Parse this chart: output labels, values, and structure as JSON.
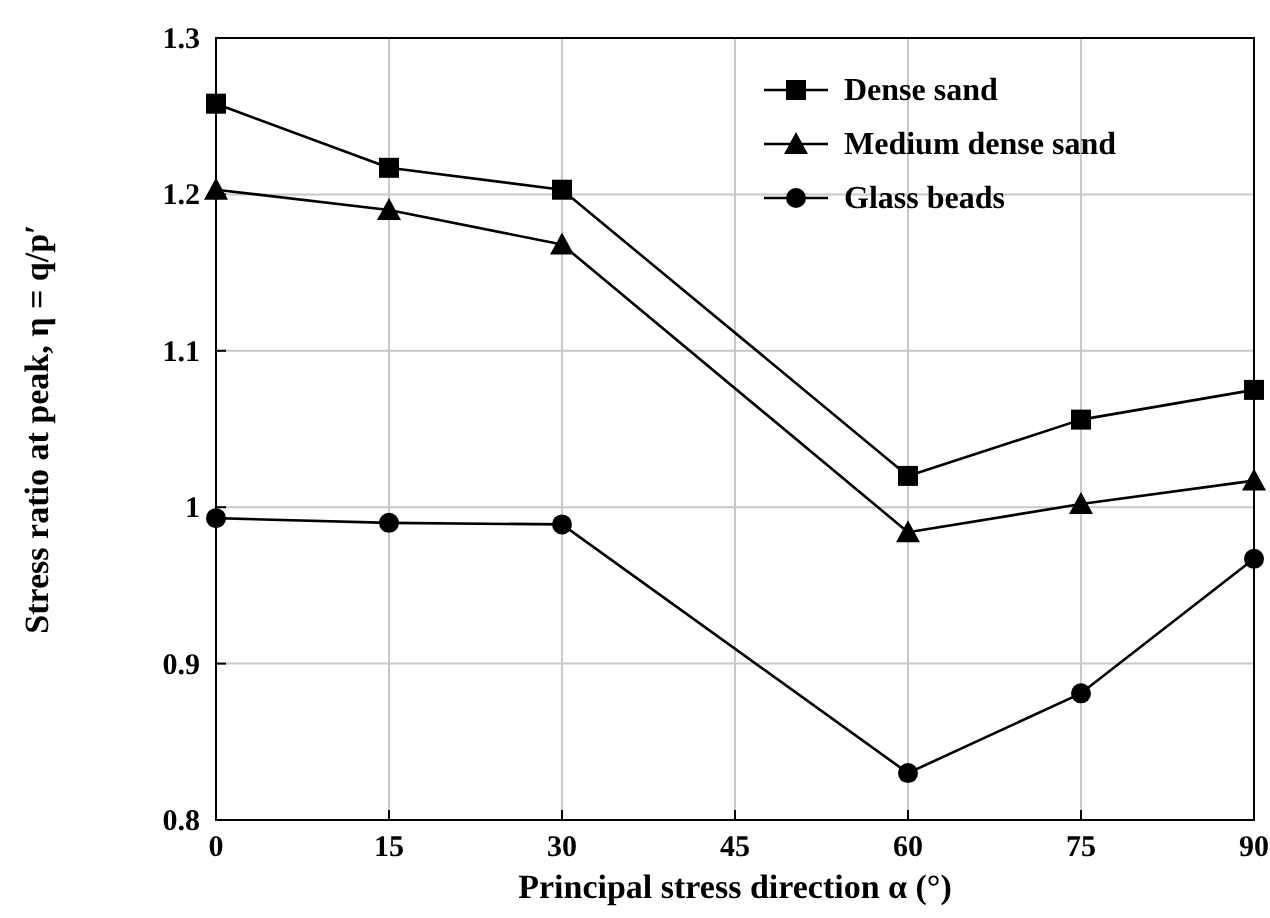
{
  "chart_data": {
    "type": "line",
    "xlabel": "Principal stress direction α (°)",
    "ylabel": "Stress ratio at peak, η = q/p′",
    "x": [
      0,
      15,
      30,
      60,
      75,
      90
    ],
    "series": [
      {
        "name": "Dense sand",
        "color": "#000000",
        "marker": "square",
        "values": [
          1.258,
          1.217,
          1.203,
          1.02,
          1.056,
          1.075
        ]
      },
      {
        "name": "Medium dense sand",
        "color": "#000000",
        "marker": "triangle",
        "values": [
          1.203,
          1.19,
          1.168,
          0.984,
          1.002,
          1.017
        ]
      },
      {
        "name": "Glass beads",
        "color": "#000000",
        "marker": "circle",
        "values": [
          0.993,
          0.99,
          0.989,
          0.83,
          0.881,
          0.967
        ]
      }
    ],
    "xlim": [
      0,
      90
    ],
    "xticks": [
      0,
      15,
      30,
      45,
      60,
      75,
      90
    ],
    "ylim": [
      0.8,
      1.3
    ],
    "yticks": [
      {
        "value": 0.8,
        "label": "0.8"
      },
      {
        "value": 0.9,
        "label": "0.9"
      },
      1,
      {
        "value": 1.1,
        "label": "1.1"
      },
      {
        "value": 1.2,
        "label": "1.2"
      },
      {
        "value": 1.3,
        "label": "1.3"
      }
    ],
    "grid": true,
    "legend": "top right",
    "line_style": "solid"
  }
}
